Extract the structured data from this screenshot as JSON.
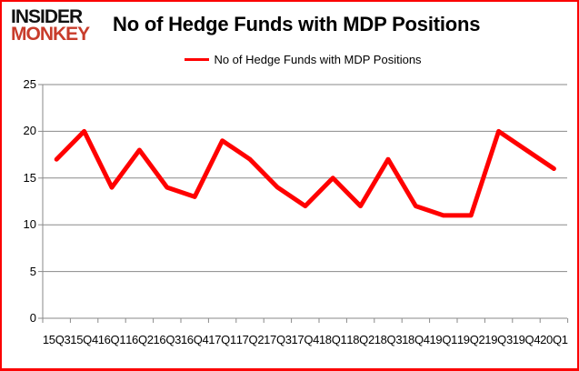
{
  "logo": {
    "line1": "INSIDER",
    "line2": "MONKEY"
  },
  "header": {
    "title": "No of Hedge Funds with MDP Positions"
  },
  "legend": {
    "label": "No of Hedge Funds with MDP Positions"
  },
  "chart_data": {
    "type": "line",
    "title": "No of Hedge Funds with MDP Positions",
    "categories": [
      "15Q3",
      "15Q4",
      "16Q1",
      "16Q2",
      "16Q3",
      "16Q4",
      "17Q1",
      "17Q2",
      "17Q3",
      "17Q4",
      "18Q1",
      "18Q2",
      "18Q3",
      "18Q4",
      "19Q1",
      "19Q2",
      "19Q3",
      "19Q4",
      "20Q1"
    ],
    "series": [
      {
        "name": "No of Hedge Funds with MDP Positions",
        "color": "#FF0000",
        "values": [
          17,
          20,
          14,
          18,
          14,
          13,
          19,
          17,
          14,
          12,
          15,
          12,
          17,
          12,
          11,
          11,
          20,
          18,
          16
        ]
      }
    ],
    "ylim": [
      0,
      25
    ],
    "yticks": [
      0,
      5,
      10,
      15,
      20,
      25
    ],
    "xlabel": "",
    "ylabel": "",
    "grid": true,
    "legend_position": "top-center"
  },
  "colors": {
    "line": "#FF0000",
    "grid": "#8a8a8a",
    "axis": "#8a8a8a",
    "border": "#fb0505",
    "logo_red": "#c83c2b",
    "text": "#000000"
  }
}
